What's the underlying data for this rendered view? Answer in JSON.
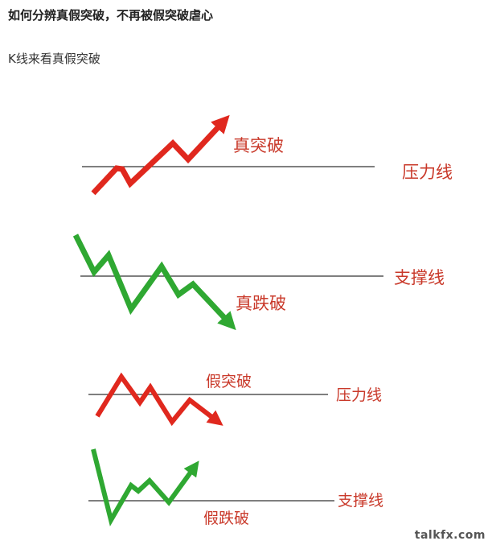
{
  "article": {
    "title": "如何分辨真假突破，不再被假突破虐心",
    "subtitle": "K线来看真假突破"
  },
  "diagram": {
    "panels": [
      {
        "label": "真突破",
        "line_label": "压力线",
        "color": "#e0281e"
      },
      {
        "label": "真跌破",
        "line_label": "支撑线",
        "color": "#2fa832"
      },
      {
        "label": "假突破",
        "line_label": "压力线",
        "color": "#e0281e"
      },
      {
        "label": "假跌破",
        "line_label": "支撑线",
        "color": "#2fa832"
      }
    ]
  },
  "watermark": "talkfx.com"
}
